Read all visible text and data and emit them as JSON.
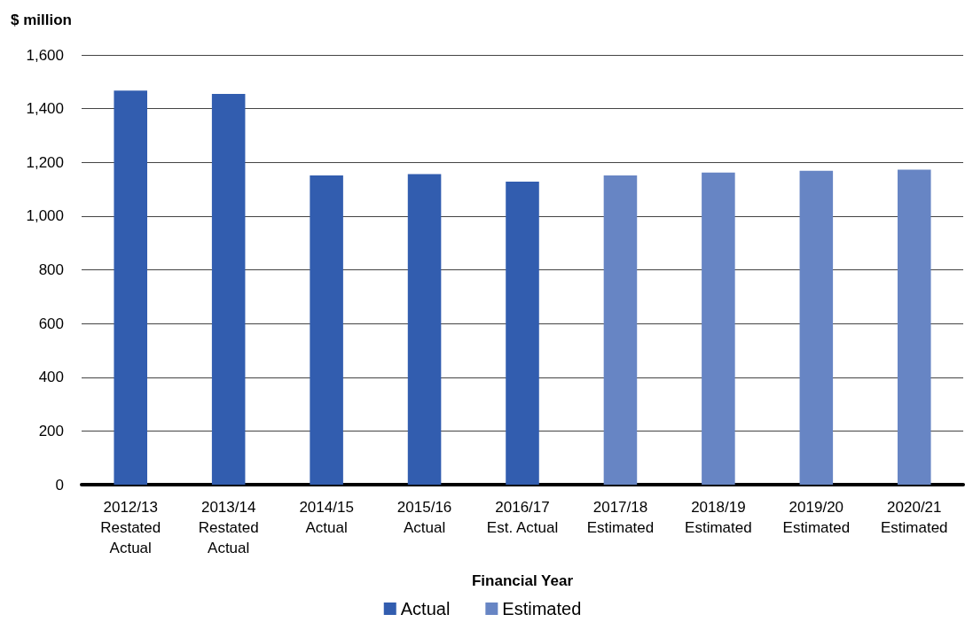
{
  "chart_data": {
    "type": "bar",
    "ylabel": "$ million",
    "xlabel": "Financial Year",
    "categories": [
      "2012/13\nRestated\nActual",
      "2013/14\nRestated\nActual",
      "2014/15\nActual",
      "2015/16\nActual",
      "2016/17\nEst. Actual",
      "2017/18\nEstimated",
      "2018/19\nEstimated",
      "2019/20\nEstimated",
      "2020/21\nEstimated"
    ],
    "series": [
      {
        "name": "Actual",
        "color": "#325daf",
        "values": [
          1467,
          1455,
          1151,
          1156,
          1128,
          null,
          null,
          null,
          null
        ]
      },
      {
        "name": "Estimated",
        "color": "#6785c4",
        "values": [
          null,
          null,
          null,
          null,
          null,
          1151,
          1162,
          1169,
          1173
        ]
      }
    ],
    "stacked": true,
    "ylim": [
      0,
      1600
    ],
    "yticks": [
      0,
      200,
      400,
      600,
      800,
      {
        "value": 1000,
        "label": "1,000"
      },
      {
        "value": 1200,
        "label": "1,200"
      },
      {
        "value": 1400,
        "label": "1,400"
      },
      {
        "value": 1600,
        "label": "1,600"
      }
    ],
    "grid": "y",
    "legend": "bottom"
  }
}
